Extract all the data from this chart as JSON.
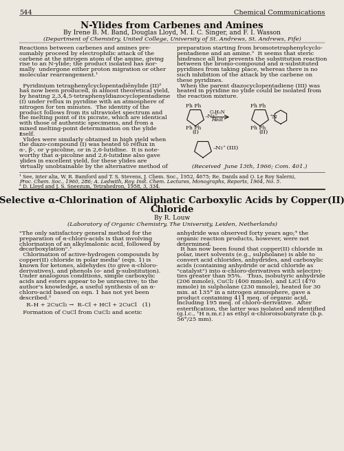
{
  "background_color": "#ede8df",
  "text_color": "#111111",
  "header_page": "544",
  "header_journal": "Chemical Communications",
  "a1_title": "N-Ylides from Carbenes and Amines",
  "a1_authors": "By Irene B. M. Band, Douglas Lloyd, M. I. C. Singer, and F. I. Wasson",
  "a1_affil": "(Department of Chemistry, United College, University of St. Andrews, St. Andrews, Fife)",
  "a1_col1": [
    "Reactions between carbenes and amines pre-",
    "sumably proceed by electrophilic attack of the",
    "carbene at the nitrogen atom of the amine, giving",
    "rise to an N-ylide; the product isolated has nor-",
    "mally  undergone either proton migration or other",
    "molecular rearrangement.¹",
    "",
    "  Pyridinium tetraphenylcyclopentadiênylide (II)²",
    "has now been produced, in almost theoretical yield,",
    "by heating 2,3,4,5-tetraphenyldiazocyclopentadiene",
    "(I) under reflux in pyridine with an atmosphere of",
    "nitrogen for ten minutes.  The identity of the",
    "product follows from its ultraviolet spectrum and",
    "the melting point of its picrate, which are identical",
    "with those of authentic specimens, and from a",
    "mixed melting-point determination on the ylide",
    "itself.",
    "  Ylides were similarly obtained in high yield when",
    "the diazo-compound (I) was heated to reflux in",
    "α-, β-, or γ-picoline, or in 2,6-lutidine.  It is note-",
    "worthy that α-picoline and 2,6-lutidine also gave",
    "ylides in excellent yield, for these ylides are",
    "virtually unobtainable by the alternative method of"
  ],
  "a1_col2_top": [
    "preparation starting from bromotetraphenylcyclo-",
    "pentadiene and an amine.²  It seems that steric",
    "hindrance all but prevents the substitution reaction",
    "between the bromo-compound and α-substituted",
    "pyridines from taking place, whereas there is no",
    "such inhibition of the attack by the carbene on",
    "these pyridines.",
    "  When the parent diazocyclopentadiene (III) was",
    "heated in pyridine no ylide could be isolated from",
    "the reaction mixture."
  ],
  "a1_received": "(Received  June 13th, 1966; Com. 401.)",
  "a1_foot1": "¹ See, inter alia, W. R. Bamford and T. S. Stevens, J. Chem. Soc., 1952, 4675; Re. Danils and O. Le Roy Salerni,",
  "a1_foot1b": "Proc. Chem. Soc., 1960, 286; A. Ledwith, Roy. Inst. Chem. Lectures, Monographs, Reports, 1964, No. 5.",
  "a1_foot2": "² D. Lloyd and J. S. Sneezum, Tetrahedron, 1958, 3, 334.",
  "a2_title1": "Selective α-Chlorination of Aliphatic Carboxylic Acids by Copper(II)",
  "a2_title2": "Chloride",
  "a2_authors": "By R. Louw",
  "a2_affil": "(Laboratory of Organic Chemistry, The University, Leiden, Netherlands)",
  "a2_col1": [
    "\"The only satisfactory general method for the",
    "preparation of α-chloro-acids is that involving",
    "chlorination of an alkylmalonic acid, followed by",
    "decarboxylation\".¹",
    "  Chlorination of active-hydrogen compounds by",
    "copper(II) chloride in polar media² (eqn. 1) is",
    "known for ketones, aldehydes (to give α-chloro-",
    "derivatives), and phenols (o- and p-substitution).",
    "Under analogous conditions, simple carboxylic",
    "acids and esters appear to be unreactive; to the",
    "author's knowledge, a useful synthesis of an α-",
    "chloro-acid based on eqn. 1 has not yet been",
    "described.²"
  ],
  "a2_eqn": "  R–H + 2CuCl₂ →  R–Cl + HCl + 2CuCl   (1)",
  "a2_col1b": [
    "  Formation of CuCl from CuCl₂ and acetic"
  ],
  "a2_col2": [
    "anhydride was observed forty years ago;⁴ the",
    "organic reaction products, however, were not",
    "determined.",
    "  It has now been found that copper(II) chloride in",
    "polar, inert solvents (e.g., sulpholane) is able to",
    "convert acid chlorides, anhydrides, and carboxylic",
    "acids (containing anhydride or acid chloride as",
    "\"catalyst\") into α-chloro-derivatives with selectivi-",
    "ties greater than 95%.   Thus, isobutyric anhydride",
    "(206 mmole), CuCl₂ (400 mmole), and LiCl (470",
    "mmole) in sulpholane (230 mmole), heated for 30",
    "min. at 135° in a nitrogen atmosphere, gave a",
    "product containing 411 meq. of organic acid,",
    "including 195 meq. of chloro-derivative.  After",
    "esterification, the latter was isolated and identified",
    "(g.l.c., ¹H n.m.r.) as ethyl α-chloroisobutyrate (b.p.",
    "56°/25 mm)."
  ]
}
